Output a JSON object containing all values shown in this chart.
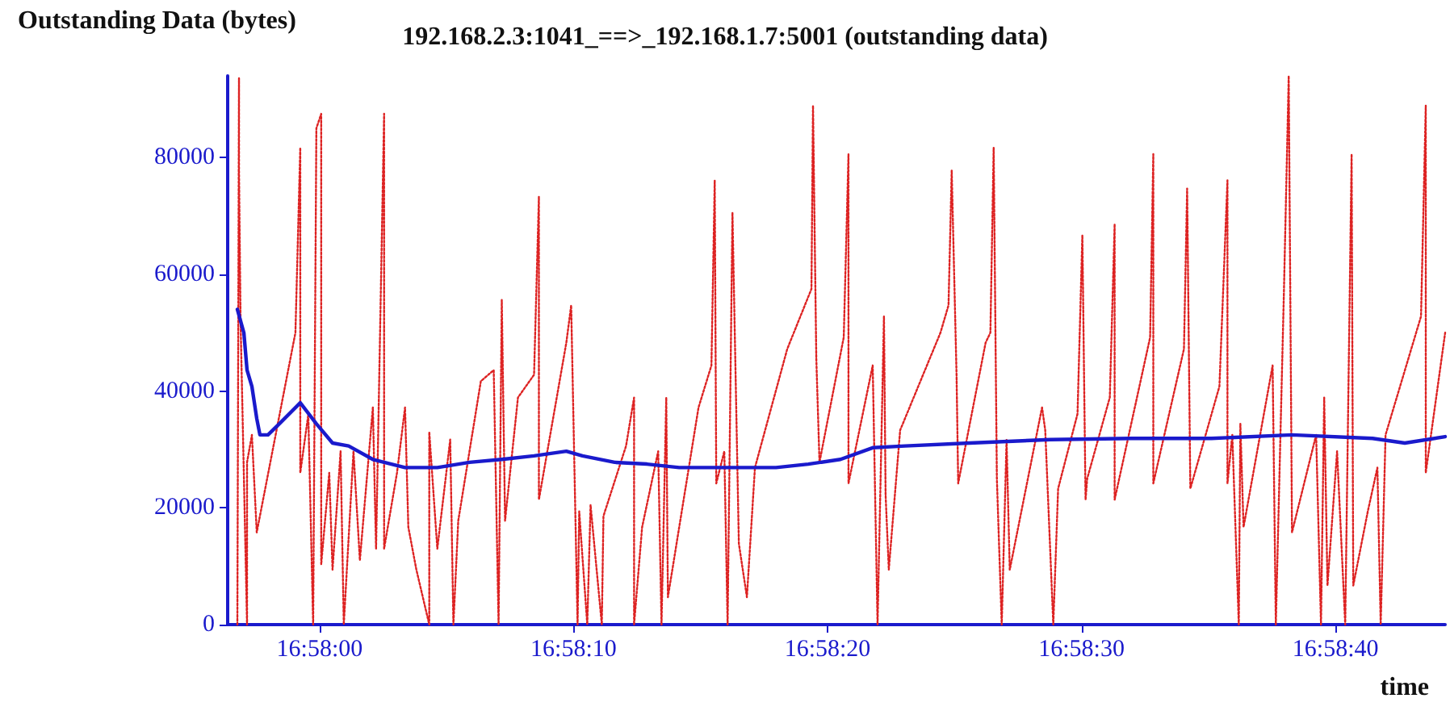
{
  "chart_data": {
    "type": "line",
    "title": "192.168.2.3:1041_==>_192.168.1.7:5001 (outstanding data)",
    "xlabel": "time",
    "ylabel": "Outstanding Data (bytes)",
    "xlim": [
      16.965661,
      16.978977
    ],
    "xticks": [
      {
        "value": 16.966667,
        "label": "16:58:00"
      },
      {
        "value": 16.969444,
        "label": "16:58:10"
      },
      {
        "value": 16.972222,
        "label": "16:58:20"
      },
      {
        "value": 16.975,
        "label": "16:58:30"
      },
      {
        "value": 16.977778,
        "label": "16:58:40"
      }
    ],
    "ylim": [
      0,
      94000
    ],
    "yticks": [
      0,
      20000,
      40000,
      60000,
      80000
    ],
    "marker": "none",
    "series": [
      {
        "color": "#dd2222",
        "line_style": "dotted",
        "x": [
          16.965767,
          16.965785,
          16.965785,
          16.965802,
          16.965873,
          16.965873,
          16.965926,
          16.965979,
          16.966402,
          16.966455,
          16.966455,
          16.966543,
          16.966596,
          16.966631,
          16.966684,
          16.966684,
          16.966772,
          16.966808,
          16.966896,
          16.966931,
          16.967037,
          16.967107,
          16.967249,
          16.967284,
          16.967372,
          16.967372,
          16.967513,
          16.967601,
          16.967637,
          16.967725,
          16.967866,
          16.967866,
          16.967954,
          16.968095,
          16.96813,
          16.968183,
          16.96843,
          16.968571,
          16.968624,
          16.968659,
          16.968695,
          16.968836,
          16.969012,
          16.969065,
          16.969065,
          16.969365,
          16.969418,
          16.969488,
          16.969506,
          16.969594,
          16.96963,
          16.969753,
          16.969771,
          16.970018,
          16.970106,
          16.970106,
          16.970194,
          16.97037,
          16.970406,
          16.970458,
          16.970476,
          16.970811,
          16.970952,
          16.970988,
          16.971005,
          16.971093,
          16.971129,
          16.971182,
          16.971252,
          16.97134,
          16.971428,
          16.971781,
          16.972046,
          16.972063,
          16.972099,
          16.972134,
          16.972399,
          16.972451,
          16.972451,
          16.972716,
          16.972769,
          16.972839,
          16.972857,
          16.972892,
          16.973016,
          16.973457,
          16.973545,
          16.97358,
          16.973633,
          16.973651,
          16.973951,
          16.974003,
          16.974039,
          16.974074,
          16.974127,
          16.97418,
          16.974215,
          16.974568,
          16.974603,
          16.974691,
          16.974744,
          16.974956,
          16.975009,
          16.975044,
          16.975062,
          16.975309,
          16.975362,
          16.975362,
          16.97575,
          16.975785,
          16.975785,
          16.97612,
          16.976155,
          16.97619,
          16.976508,
          16.976596,
          16.976596,
          16.976649,
          16.97672,
          16.976737,
          16.976772,
          16.97709,
          16.977125,
          16.977213,
          16.977266,
          16.977302,
          16.977566,
          16.977619,
          16.977654,
          16.97769,
          16.977795,
          16.977884,
          16.977954,
          16.977972,
          16.978131,
          16.978236,
          16.978272,
          16.978325,
          16.978713,
          16.978765,
          16.978765,
          16.978977
        ],
        "values": [
          0,
          93600,
          77800,
          52000,
          0,
          27800,
          32500,
          15800,
          50000,
          81700,
          26000,
          36000,
          0,
          85000,
          87500,
          10300,
          26000,
          9400,
          29700,
          0,
          29700,
          11000,
          37200,
          13000,
          87500,
          13000,
          26000,
          37200,
          16700,
          9400,
          0,
          33000,
          13000,
          31700,
          0,
          17800,
          41700,
          43600,
          0,
          55600,
          17800,
          38900,
          42800,
          73300,
          21400,
          48300,
          54700,
          0,
          19400,
          0,
          20500,
          0,
          18600,
          30600,
          38900,
          0,
          16700,
          29700,
          0,
          38900,
          4700,
          37200,
          44400,
          76100,
          24200,
          29700,
          0,
          70600,
          13900,
          4700,
          26900,
          47200,
          57500,
          88900,
          45600,
          27800,
          49200,
          80600,
          24200,
          44400,
          0,
          52800,
          22200,
          9400,
          33300,
          50000,
          54700,
          77800,
          42800,
          24200,
          48300,
          50000,
          81700,
          25000,
          0,
          31700,
          9400,
          37200,
          33300,
          0,
          23300,
          36100,
          66700,
          21400,
          25000,
          38900,
          68600,
          21400,
          49200,
          80600,
          24200,
          47200,
          74700,
          23300,
          40800,
          76100,
          24200,
          32500,
          0,
          34400,
          16700,
          44400,
          0,
          56700,
          94000,
          15800,
          32500,
          0,
          38900,
          6700,
          29700,
          0,
          80600,
          6700,
          19400,
          26900,
          0,
          32500,
          52800,
          88900,
          26000,
          50000
        ]
      },
      {
        "color": "#1a1acc",
        "line_style": "solid",
        "x": [
          16.965767,
          16.965838,
          16.965873,
          16.965926,
          16.965979,
          16.966014,
          16.966102,
          16.966226,
          16.966455,
          16.966631,
          16.966808,
          16.966984,
          16.967249,
          16.967601,
          16.967954,
          16.968307,
          16.968659,
          16.969012,
          16.969365,
          16.969541,
          16.969894,
          16.970247,
          16.9706,
          16.970952,
          16.971305,
          16.971658,
          16.972011,
          16.972363,
          16.972716,
          16.973069,
          16.973774,
          16.974656,
          16.975538,
          16.97642,
          16.977302,
          16.978183,
          16.978536,
          16.978977
        ],
        "values": [
          54000,
          50000,
          43600,
          40800,
          35300,
          32500,
          32500,
          34400,
          38000,
          34400,
          31100,
          30600,
          28300,
          26900,
          26900,
          27800,
          28300,
          28900,
          29700,
          28900,
          27800,
          27500,
          26900,
          26900,
          26900,
          26900,
          27500,
          28300,
          30300,
          30600,
          31100,
          31700,
          31900,
          31900,
          32500,
          31900,
          31100,
          32200
        ]
      }
    ]
  }
}
